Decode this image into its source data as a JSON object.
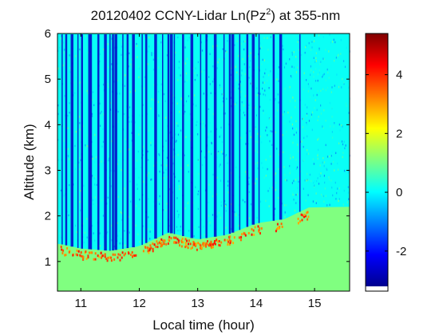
{
  "chart_data": {
    "type": "heatmap",
    "title_main": "20120402 CCNY-Lidar Ln(Pz",
    "title_sup": "2",
    "title_end": ") at 355-nm",
    "xlabel": "Local time (hour)",
    "ylabel": "Altitude (km)",
    "xlim": [
      10.6,
      15.6
    ],
    "ylim": [
      0.35,
      6.0
    ],
    "xticks": [
      11,
      12,
      13,
      14,
      15
    ],
    "yticks": [
      1,
      2,
      3,
      4,
      5,
      6
    ],
    "colorbar": {
      "range": [
        -3.2,
        5.4
      ],
      "ticks": [
        -2,
        0,
        2,
        4
      ],
      "colormap": "jet"
    },
    "regions": {
      "near_surface_value": 1.1,
      "upper_background_value": 0.1,
      "cloud_base_value": 4.3,
      "cloud_column_value": -2.6
    },
    "cloud_base_km": [
      {
        "t": 10.65,
        "z": 1.35
      },
      {
        "t": 11.0,
        "z": 1.25
      },
      {
        "t": 11.5,
        "z": 1.2
      },
      {
        "t": 12.0,
        "z": 1.3
      },
      {
        "t": 12.5,
        "z": 1.6
      },
      {
        "t": 13.0,
        "z": 1.45
      },
      {
        "t": 13.5,
        "z": 1.55
      },
      {
        "t": 14.0,
        "z": 1.8
      },
      {
        "t": 14.5,
        "z": 1.9
      },
      {
        "t": 14.9,
        "z": 2.15
      }
    ],
    "cloud_columns_hour": [
      10.68,
      10.75,
      10.85,
      10.95,
      11.02,
      11.15,
      11.18,
      11.3,
      11.42,
      11.5,
      11.55,
      11.6,
      11.72,
      11.8,
      11.9,
      12.05,
      12.12,
      12.28,
      12.4,
      12.5,
      12.55,
      12.6,
      12.75,
      12.9,
      13.05,
      13.15,
      13.3,
      13.45,
      13.55,
      13.6,
      13.72,
      13.85,
      13.95,
      14.05,
      14.3,
      14.42,
      14.75
    ]
  }
}
